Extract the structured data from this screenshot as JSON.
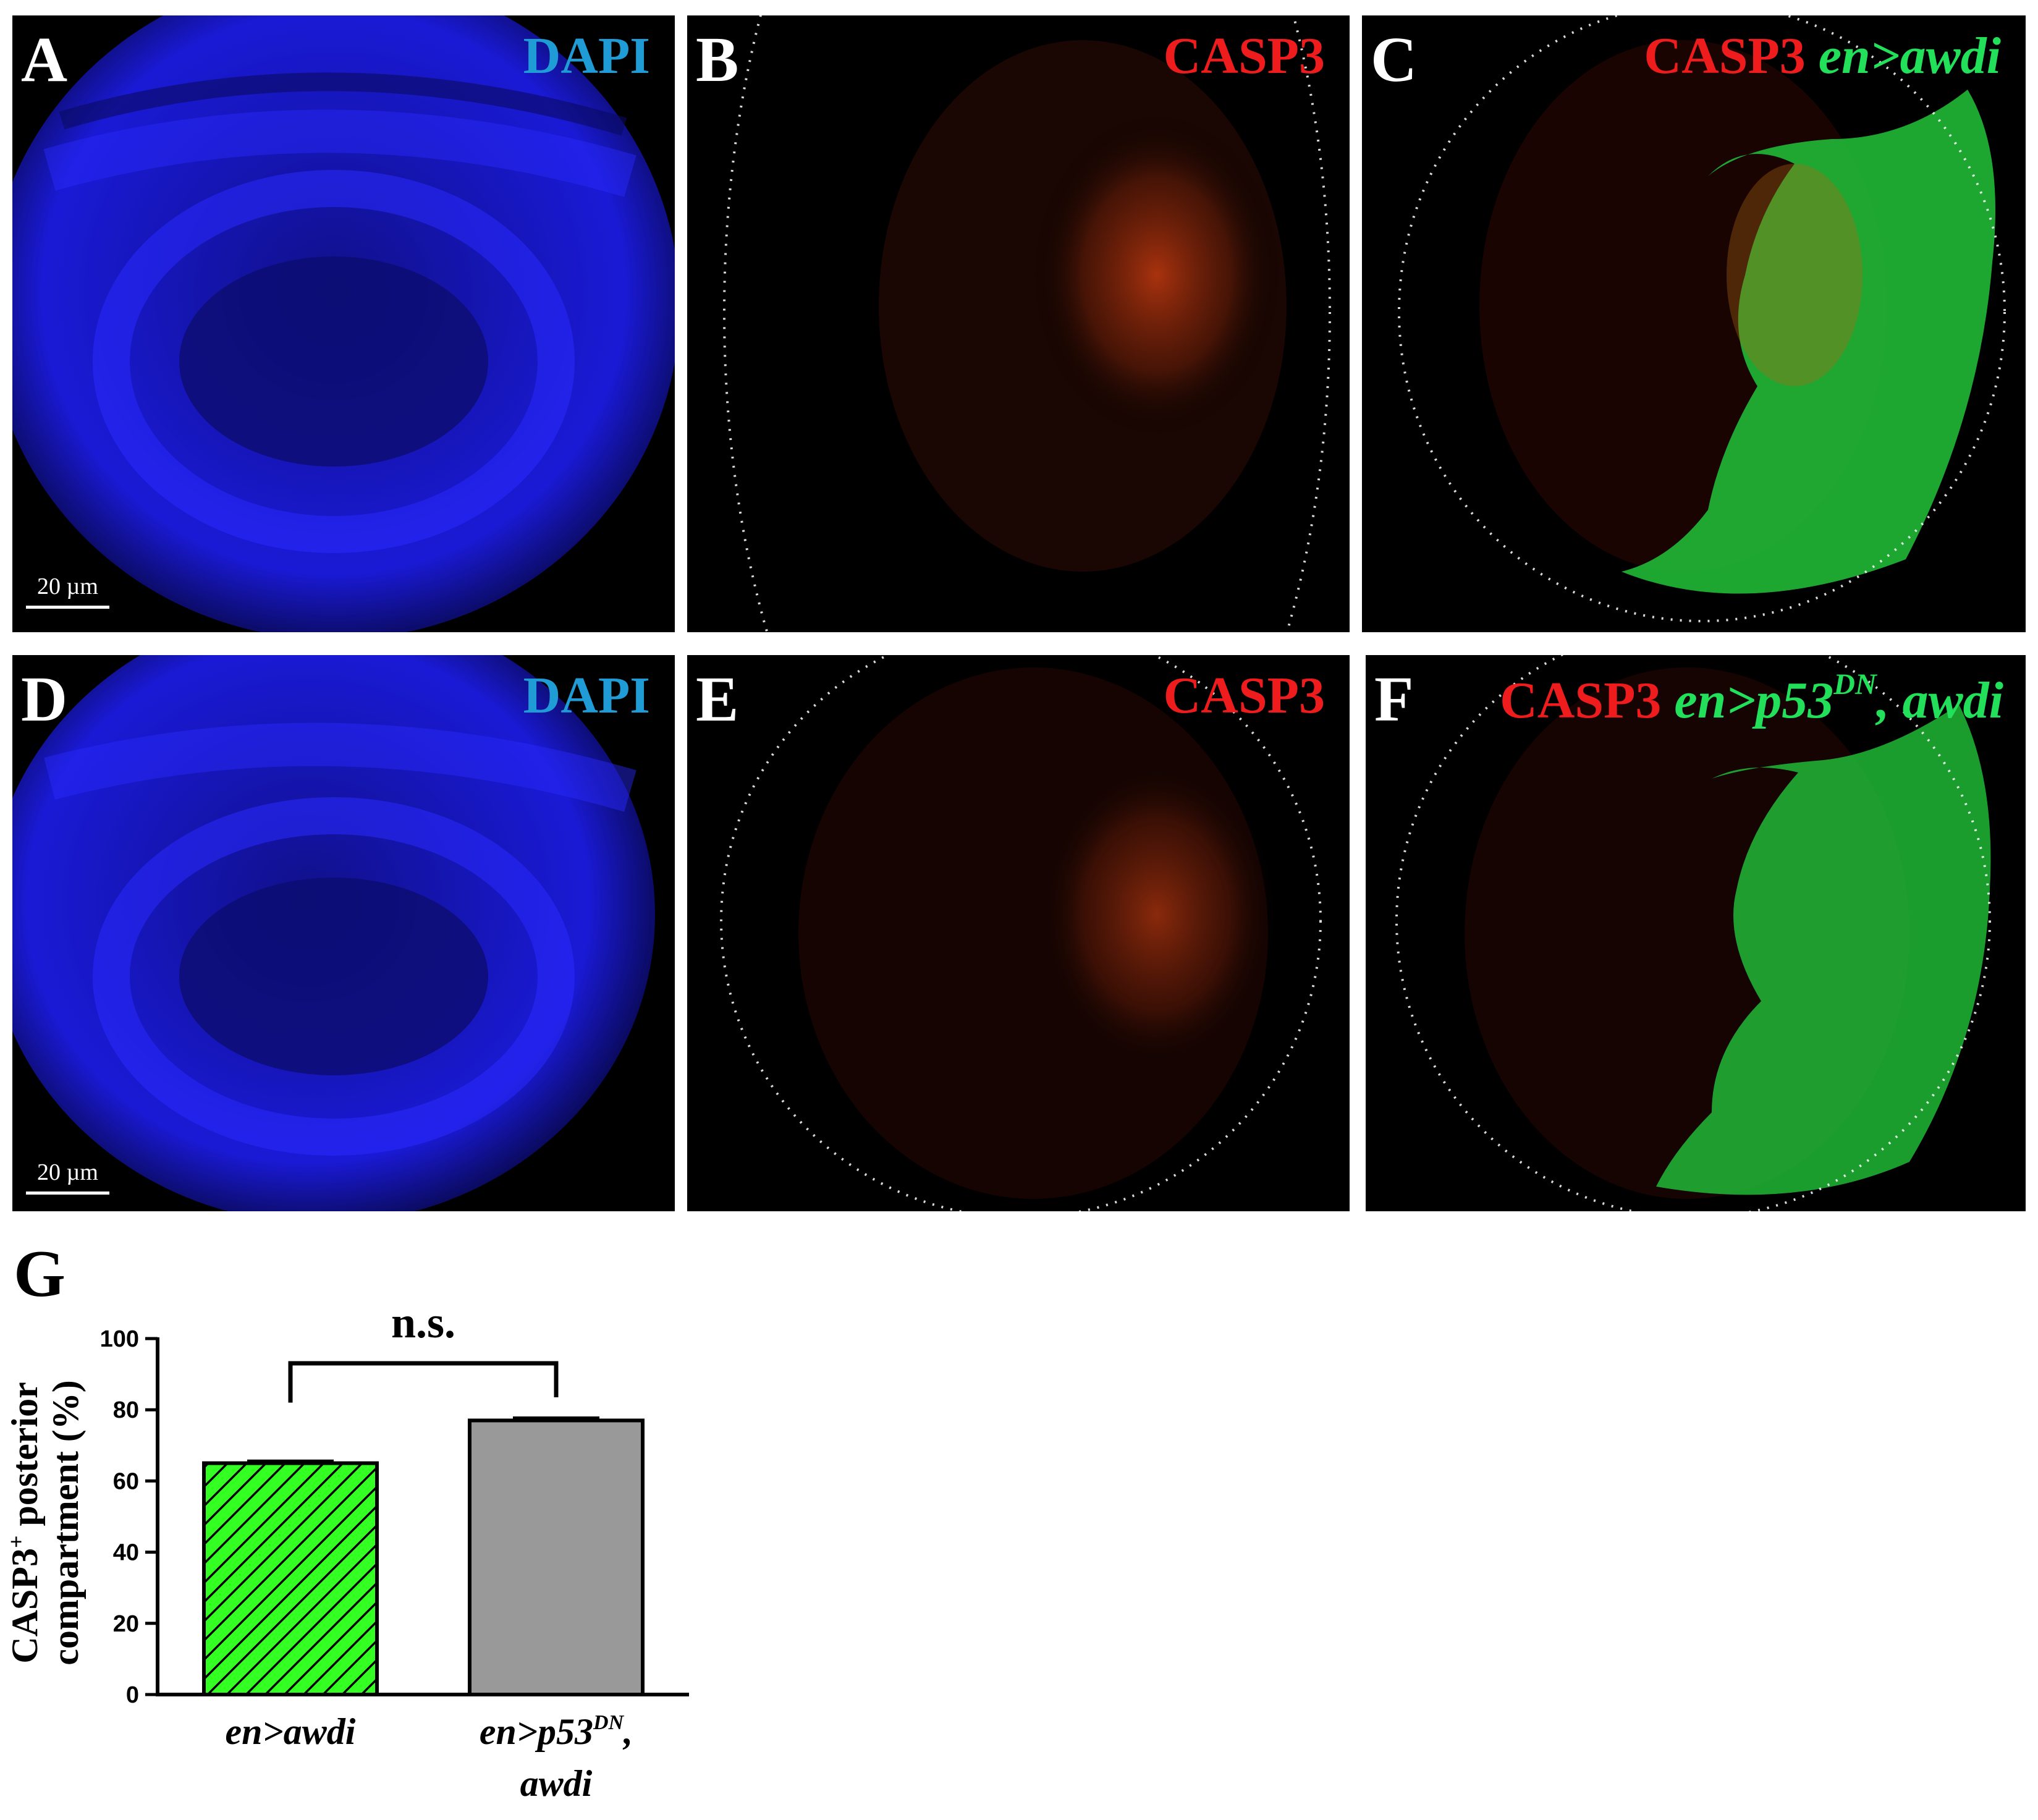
{
  "panels": [
    {
      "letter": "A",
      "stain": "DAPI"
    },
    {
      "letter": "B",
      "stain": "CASP3"
    },
    {
      "letter": "C",
      "stain": "CASP3",
      "genotype": "en>awdi"
    },
    {
      "letter": "D",
      "stain": "DAPI"
    },
    {
      "letter": "E",
      "stain": "CASP3"
    },
    {
      "letter": "F",
      "stain": "CASP3",
      "genotype_pre": "en>p53",
      "genotype_sup": "DN",
      "genotype_post": ", awdi"
    }
  ],
  "scalebar_label": "20 µm",
  "panel_g_letter": "G",
  "colors": {
    "dapi_label": "#1f9bd6",
    "casp3_label": "#ee1c1c",
    "genotype_label": "#22e05a",
    "dapi_stain": "#1c1cff",
    "casp3_stain": "#ff5a1e",
    "gfp_stain": "#22d43a",
    "bar_green": "#33ff22",
    "bar_gray": "#999999"
  },
  "chart_data": {
    "type": "bar",
    "categories": [
      "en>awdi",
      "en>p53DN, awdi"
    ],
    "category_lines": [
      [
        "en>awdi"
      ],
      [
        "en>p53DN,",
        "awdi"
      ]
    ],
    "values": [
      65,
      77
    ],
    "errors": [
      0.5,
      0.6
    ],
    "ylim": [
      0,
      100
    ],
    "yticks": [
      0,
      20,
      40,
      60,
      80,
      100
    ],
    "ylabel_lines": [
      "CASP3+ posterior",
      "compartment (%)"
    ],
    "significance": "n.s.",
    "bar_styles": [
      "hatched-green",
      "solid-gray"
    ]
  }
}
